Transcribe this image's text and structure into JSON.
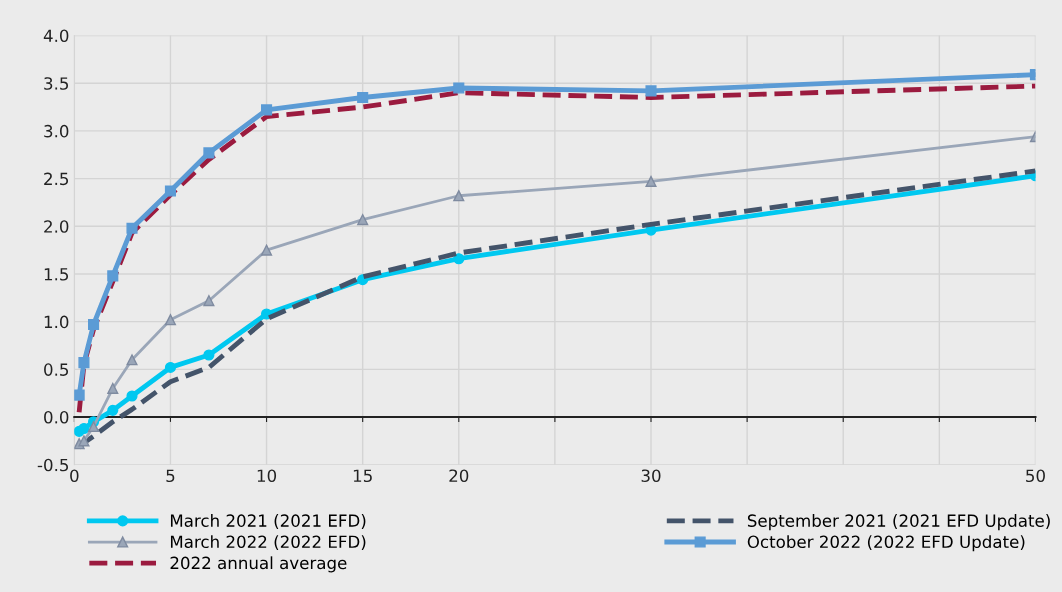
{
  "chart_data": {
    "type": "line",
    "x": [
      0.25,
      0.5,
      1,
      2,
      3,
      5,
      7,
      10,
      15,
      20,
      30,
      50
    ],
    "series": [
      {
        "name": "March 2021 (2021 EFD)",
        "color": "#00c8f0",
        "marker": "circle",
        "line_style": "solid",
        "values": [
          -0.15,
          -0.12,
          -0.05,
          0.07,
          0.22,
          0.52,
          0.65,
          1.08,
          1.44,
          1.66,
          1.96,
          2.53
        ]
      },
      {
        "name": "March 2022 (2022 EFD)",
        "color": "#9aa6b8",
        "marker": "triangle",
        "line_style": "solid",
        "values": [
          -0.28,
          -0.25,
          -0.1,
          0.3,
          0.6,
          1.02,
          1.22,
          1.75,
          2.07,
          2.32,
          2.47,
          2.94
        ]
      },
      {
        "name": "2022 annual average",
        "color": "#9b1b3f",
        "marker": "none",
        "line_style": "dashed",
        "values": [
          0.05,
          0.55,
          0.92,
          1.42,
          1.93,
          2.33,
          2.7,
          3.15,
          3.25,
          3.4,
          3.35,
          3.47
        ]
      },
      {
        "name": "September 2021 (2021 EFD Update)",
        "color": "#44546a",
        "marker": "none",
        "line_style": "dashed",
        "values": [
          -0.32,
          -0.27,
          -0.2,
          -0.05,
          0.08,
          0.37,
          0.52,
          1.03,
          1.47,
          1.72,
          2.02,
          2.58
        ]
      },
      {
        "name": "October 2022 (2022 EFD Update)",
        "color": "#5b9bd5",
        "marker": "square",
        "line_style": "solid",
        "values": [
          0.23,
          0.57,
          0.97,
          1.48,
          1.98,
          2.37,
          2.77,
          3.22,
          3.35,
          3.45,
          3.42,
          3.59
        ]
      }
    ],
    "xlim": [
      0,
      50
    ],
    "xticks": [
      0,
      5,
      10,
      15,
      20,
      {
        "value": 25,
        "label": null
      },
      30,
      {
        "value": 35,
        "label": null
      },
      {
        "value": 40,
        "label": null
      },
      {
        "value": 45,
        "label": null
      },
      50
    ],
    "ylim": [
      -0.5,
      4.0
    ],
    "yticks": [
      {
        "value": -0.5,
        "label": "-0.5"
      },
      {
        "value": 0,
        "label": "0.0"
      },
      {
        "value": 0.5,
        "label": "0.5"
      },
      {
        "value": 1,
        "label": "1.0"
      },
      {
        "value": 1.5,
        "label": "1.5"
      },
      {
        "value": 2,
        "label": "2.0"
      },
      {
        "value": 2.5,
        "label": "2.5"
      },
      {
        "value": 3,
        "label": "3.0"
      },
      {
        "value": 3.5,
        "label": "3.5"
      },
      {
        "value": 4,
        "label": "4.0"
      }
    ],
    "grid": true,
    "legend": "bottom"
  }
}
